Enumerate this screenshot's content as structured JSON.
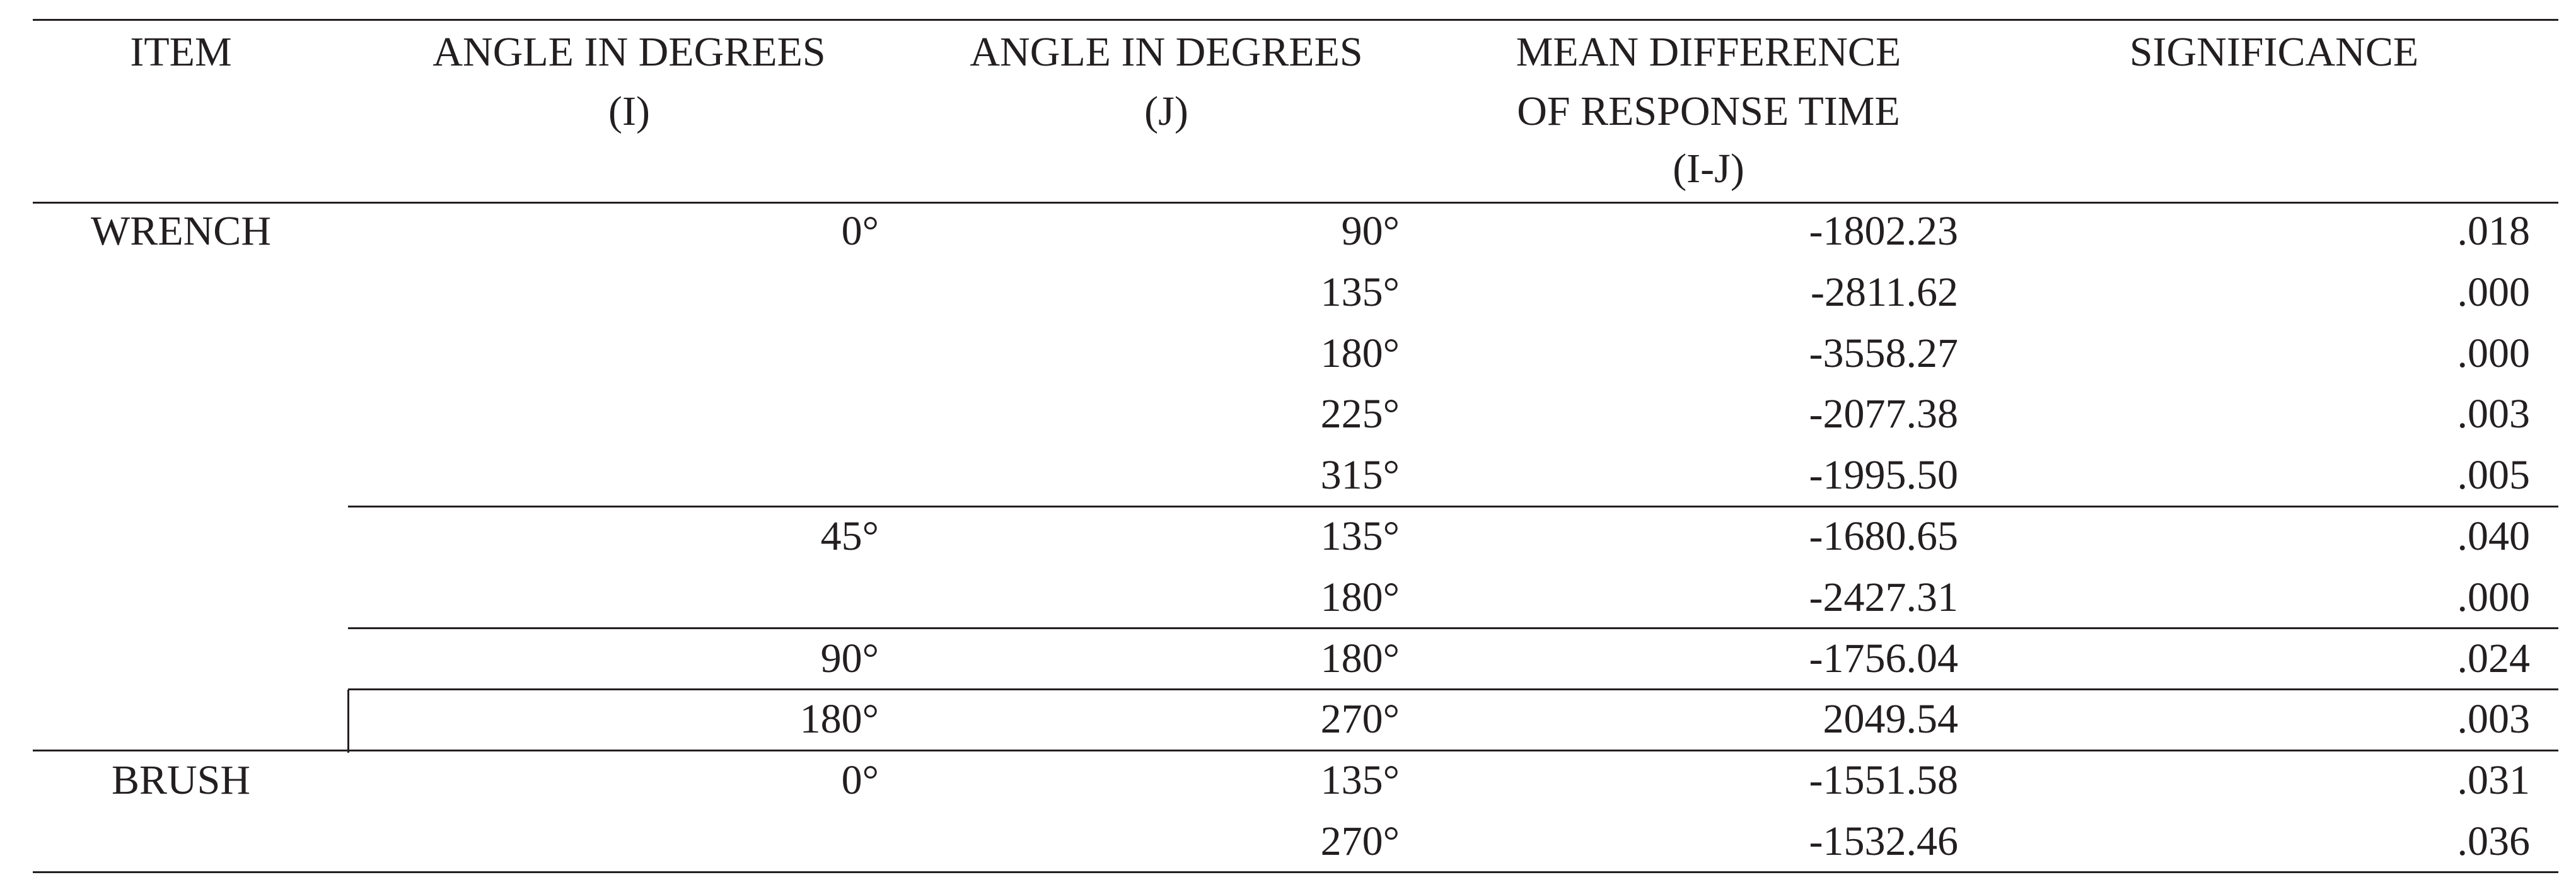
{
  "table": {
    "header": [
      [
        "ITEM"
      ],
      [
        "ANGLE IN DEGREES",
        "(I)"
      ],
      [
        "ANGLE IN DEGREES",
        "(J)"
      ],
      [
        "MEAN DIFFERENCE",
        "OF RESPONSE TIME",
        "(I-J)"
      ],
      [
        "SIGNIFICANCE"
      ]
    ],
    "items": [
      {
        "name": "WRENCH",
        "groups": [
          {
            "i": "0°",
            "rows": [
              {
                "j": "90°",
                "diff": "-1802.23",
                "sig": ".018"
              },
              {
                "j": "135°",
                "diff": "-2811.62",
                "sig": ".000"
              },
              {
                "j": "180°",
                "diff": "-3558.27",
                "sig": ".000"
              },
              {
                "j": "225°",
                "diff": "-2077.38",
                "sig": ".003"
              },
              {
                "j": "315°",
                "diff": "-1995.50",
                "sig": ".005"
              }
            ]
          },
          {
            "i": "45°",
            "rows": [
              {
                "j": "135°",
                "diff": "-1680.65",
                "sig": ".040"
              },
              {
                "j": "180°",
                "diff": "-2427.31",
                "sig": ".000"
              }
            ]
          },
          {
            "i": "90°",
            "rows": [
              {
                "j": "180°",
                "diff": "-1756.04",
                "sig": ".024"
              }
            ]
          },
          {
            "i": "180°",
            "rows": [
              {
                "j": "270°",
                "diff": "2049.54",
                "sig": ".003"
              }
            ]
          }
        ]
      },
      {
        "name": "BRUSH",
        "groups": [
          {
            "i": "0°",
            "rows": [
              {
                "j": "135°",
                "diff": "-1551.58",
                "sig": ".031"
              },
              {
                "j": "270°",
                "diff": "-1532.46",
                "sig": ".036"
              }
            ]
          }
        ]
      }
    ]
  }
}
